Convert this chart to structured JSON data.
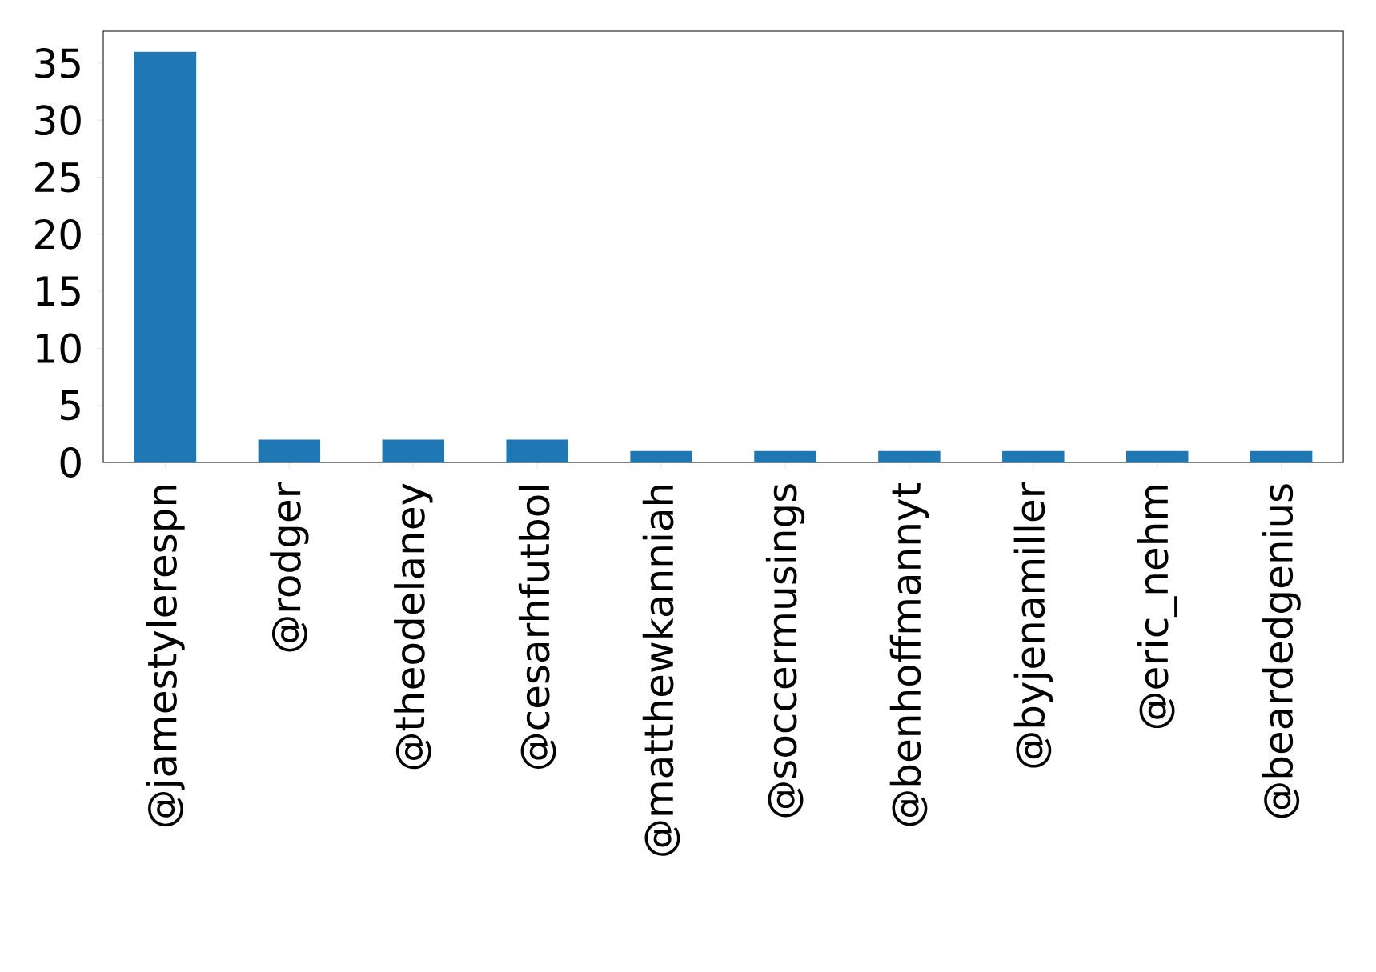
{
  "chart_data": {
    "type": "bar",
    "categories": [
      "@jamestylerespn",
      "@rodger",
      "@theodelaney",
      "@cesarhfutbol",
      "@matthewkanniah",
      "@soccermusings",
      "@benhoffmannyt",
      "@byjenamiller",
      "@eric_nehm",
      "@beardedgenius"
    ],
    "values": [
      36,
      2,
      2,
      2,
      1,
      1,
      1,
      1,
      1,
      1
    ],
    "color": "#1f77b4",
    "ylim": [
      0,
      37.8
    ],
    "yticks": [
      0,
      5,
      10,
      15,
      20,
      25,
      30,
      35
    ]
  }
}
